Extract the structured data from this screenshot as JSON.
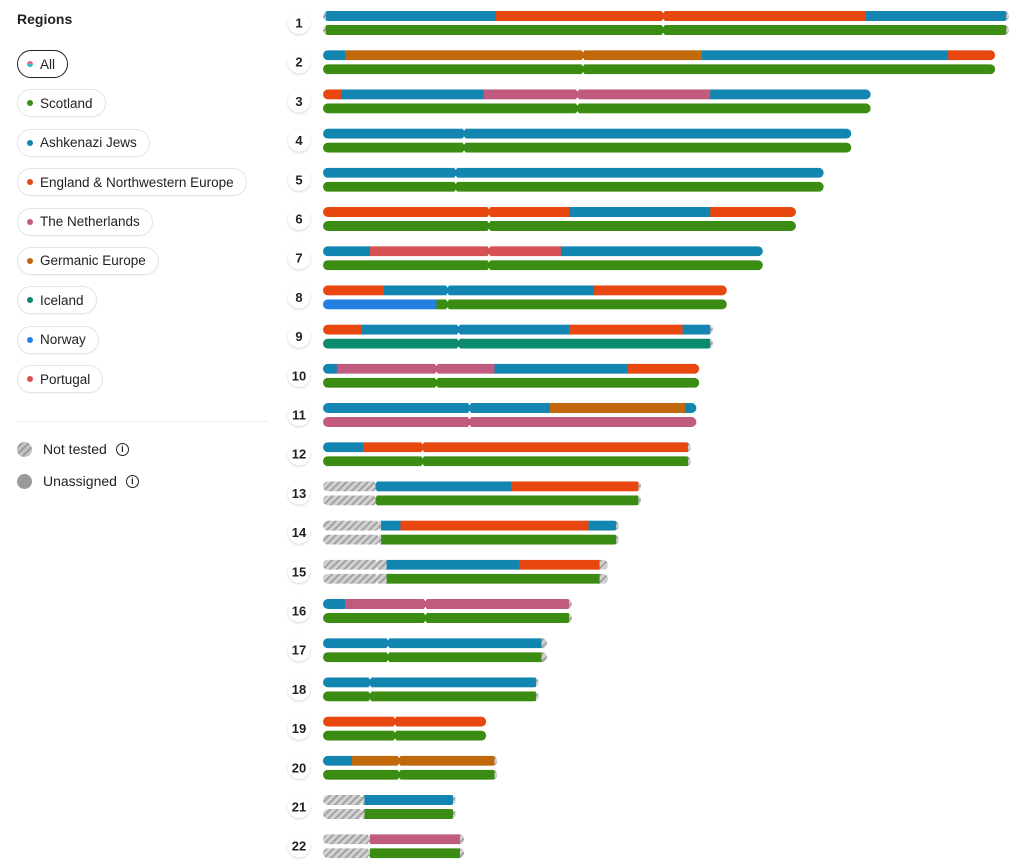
{
  "sidebar": {
    "title": "Regions",
    "filters": [
      {
        "label": "All",
        "color": "#6fb3c9",
        "selected": true
      },
      {
        "label": "Scotland",
        "color": "#3b8c12"
      },
      {
        "label": "Ashkenazi Jews",
        "color": "#1286b0"
      },
      {
        "label": "England & Northwestern Europe",
        "color": "#e8470f"
      },
      {
        "label": "The Netherlands",
        "color": "#c05a7e"
      },
      {
        "label": "Germanic Europe",
        "color": "#c0680a"
      },
      {
        "label": "Iceland",
        "color": "#0c8a6e"
      },
      {
        "label": "Norway",
        "color": "#2480e0"
      },
      {
        "label": "Portugal",
        "color": "#d65252"
      }
    ],
    "not_tested": "Not tested",
    "unassigned": "Unassigned",
    "info_glyph": "i"
  },
  "chart_data": {
    "type": "chromosome-painting",
    "units": "Mb",
    "colors": {
      "SC": "#3b8c12",
      "AJ": "#1286b0",
      "EN": "#e8470f",
      "NL": "#c05a7e",
      "GE": "#c0680a",
      "IS": "#0c8a6e",
      "NO": "#2480e0",
      "PT": "#d65252",
      "NT": "not-tested-hatch"
    },
    "chromosomes": [
      {
        "label": "1",
        "length": 248,
        "centromere": 123,
        "upper": [
          [
            "NT",
            0,
            1
          ],
          [
            "AJ",
            1,
            62.5
          ],
          [
            "EN",
            62.5,
            196
          ],
          [
            "AJ",
            196,
            247
          ],
          [
            "NT",
            247,
            248
          ]
        ],
        "lower": [
          [
            "NT",
            0,
            1
          ],
          [
            "SC",
            1,
            247
          ],
          [
            "NT",
            247,
            248
          ]
        ]
      },
      {
        "label": "2",
        "length": 243,
        "centromere": 94,
        "upper": [
          [
            "AJ",
            0,
            8
          ],
          [
            "GE",
            8,
            137
          ],
          [
            "AJ",
            137,
            226
          ],
          [
            "EN",
            226,
            243
          ]
        ],
        "lower": [
          [
            "SC",
            0,
            243
          ]
        ]
      },
      {
        "label": "3",
        "length": 198,
        "centromere": 92,
        "upper": [
          [
            "EN",
            0,
            6.5
          ],
          [
            "AJ",
            6.5,
            58
          ],
          [
            "NL",
            58,
            140
          ],
          [
            "AJ",
            140,
            198
          ]
        ],
        "lower": [
          [
            "SC",
            0,
            198
          ]
        ]
      },
      {
        "label": "4",
        "length": 191,
        "centromere": 51,
        "upper": [
          [
            "AJ",
            0,
            191
          ]
        ],
        "lower": [
          [
            "SC",
            0,
            191
          ]
        ]
      },
      {
        "label": "5",
        "length": 181,
        "centromere": 48,
        "upper": [
          [
            "AJ",
            0,
            181
          ]
        ],
        "lower": [
          [
            "SC",
            0,
            181
          ]
        ]
      },
      {
        "label": "6",
        "length": 171,
        "centromere": 60,
        "upper": [
          [
            "EN",
            0,
            89
          ],
          [
            "AJ",
            89,
            140
          ],
          [
            "EN",
            140,
            171
          ]
        ],
        "lower": [
          [
            "SC",
            0,
            171
          ]
        ]
      },
      {
        "label": "7",
        "length": 159,
        "centromere": 60,
        "upper": [
          [
            "AJ",
            0,
            17
          ],
          [
            "PT",
            17,
            86
          ],
          [
            "AJ",
            86,
            159
          ]
        ],
        "lower": [
          [
            "SC",
            0,
            159
          ]
        ]
      },
      {
        "label": "8",
        "length": 146,
        "centromere": 45,
        "upper": [
          [
            "EN",
            0,
            22
          ],
          [
            "AJ",
            22,
            98
          ],
          [
            "EN",
            98,
            146
          ]
        ],
        "lower": [
          [
            "NO",
            0,
            41
          ],
          [
            "SC",
            41,
            146
          ]
        ]
      },
      {
        "label": "9",
        "length": 141,
        "centromere": 49,
        "upper": [
          [
            "EN",
            0,
            14
          ],
          [
            "AJ",
            14,
            89
          ],
          [
            "EN",
            89,
            130
          ],
          [
            "AJ",
            130,
            140
          ],
          [
            "NT",
            140,
            141
          ]
        ],
        "lower": [
          [
            "IS",
            0,
            140
          ],
          [
            "NT",
            140,
            141
          ]
        ]
      },
      {
        "label": "10",
        "length": 136,
        "centromere": 41,
        "upper": [
          [
            "AJ",
            0,
            5
          ],
          [
            "NL",
            5,
            62
          ],
          [
            "AJ",
            62,
            110
          ],
          [
            "EN",
            110,
            136
          ]
        ],
        "lower": [
          [
            "SC",
            0,
            136
          ]
        ]
      },
      {
        "label": "11",
        "length": 135,
        "centromere": 53,
        "upper": [
          [
            "AJ",
            0,
            82
          ],
          [
            "GE",
            82,
            131
          ],
          [
            "AJ",
            131,
            135
          ]
        ],
        "lower": [
          [
            "NL",
            0,
            135
          ]
        ]
      },
      {
        "label": "12",
        "length": 133,
        "centromere": 36,
        "upper": [
          [
            "AJ",
            0,
            14.5
          ],
          [
            "EN",
            14.5,
            132
          ],
          [
            "NT",
            132,
            133
          ]
        ],
        "lower": [
          [
            "SC",
            0,
            132
          ],
          [
            "NT",
            132,
            133
          ]
        ]
      },
      {
        "label": "13",
        "length": 115,
        "centromere": 19,
        "upper": [
          [
            "NT",
            0,
            19
          ],
          [
            "AJ",
            19,
            68
          ],
          [
            "EN",
            68,
            114
          ],
          [
            "NT",
            114,
            115
          ]
        ],
        "lower": [
          [
            "NT",
            0,
            19
          ],
          [
            "SC",
            19,
            114
          ],
          [
            "NT",
            114,
            115
          ]
        ]
      },
      {
        "label": "14",
        "length": 107,
        "centromere": 20,
        "upper": [
          [
            "NT",
            0,
            21
          ],
          [
            "AJ",
            21,
            28
          ],
          [
            "EN",
            28,
            96
          ],
          [
            "AJ",
            96,
            106
          ],
          [
            "NT",
            106,
            107
          ]
        ],
        "lower": [
          [
            "NT",
            0,
            21
          ],
          [
            "SC",
            21,
            106
          ],
          [
            "NT",
            106,
            107
          ]
        ]
      },
      {
        "label": "15",
        "length": 103,
        "centromere": 19.5,
        "upper": [
          [
            "NT",
            0,
            23
          ],
          [
            "AJ",
            23,
            71
          ],
          [
            "EN",
            71,
            100
          ],
          [
            "NT",
            100,
            103
          ]
        ],
        "lower": [
          [
            "NT",
            0,
            23
          ],
          [
            "SC",
            23,
            100
          ],
          [
            "NT",
            100,
            103
          ]
        ]
      },
      {
        "label": "16",
        "length": 90,
        "centromere": 37,
        "upper": [
          [
            "AJ",
            0,
            8
          ],
          [
            "NL",
            8,
            89
          ],
          [
            "NT",
            89,
            90
          ]
        ],
        "lower": [
          [
            "SC",
            0,
            89
          ],
          [
            "NT",
            89,
            90
          ]
        ]
      },
      {
        "label": "17",
        "length": 81,
        "centromere": 23.5,
        "upper": [
          [
            "AJ",
            0,
            79
          ],
          [
            "NT",
            79,
            81
          ]
        ],
        "lower": [
          [
            "SC",
            0,
            79
          ],
          [
            "NT",
            79,
            81
          ]
        ]
      },
      {
        "label": "18",
        "length": 78,
        "centromere": 17,
        "upper": [
          [
            "AJ",
            0,
            77
          ],
          [
            "NT",
            77,
            78
          ]
        ],
        "lower": [
          [
            "SC",
            0,
            77
          ],
          [
            "NT",
            77,
            78
          ]
        ]
      },
      {
        "label": "19",
        "length": 59,
        "centromere": 26,
        "upper": [
          [
            "EN",
            0,
            59
          ]
        ],
        "lower": [
          [
            "SC",
            0,
            59
          ]
        ]
      },
      {
        "label": "20",
        "length": 63,
        "centromere": 27.5,
        "upper": [
          [
            "AJ",
            0,
            10.5
          ],
          [
            "GE",
            10.5,
            62
          ],
          [
            "NT",
            62,
            63
          ]
        ],
        "lower": [
          [
            "SC",
            0,
            62
          ],
          [
            "NT",
            62,
            63
          ]
        ]
      },
      {
        "label": "21",
        "length": 48,
        "centromere": 14,
        "upper": [
          [
            "NT",
            0,
            15
          ],
          [
            "AJ",
            15,
            47
          ],
          [
            "NT",
            47,
            48
          ]
        ],
        "lower": [
          [
            "NT",
            0,
            15
          ],
          [
            "SC",
            15,
            47
          ],
          [
            "NT",
            47,
            48
          ]
        ]
      },
      {
        "label": "22",
        "length": 51,
        "centromere": 16.6,
        "upper": [
          [
            "NT",
            0,
            17
          ],
          [
            "NL",
            17,
            49.5
          ],
          [
            "NT",
            49.5,
            51
          ]
        ],
        "lower": [
          [
            "NT",
            0,
            17
          ],
          [
            "SC",
            17,
            49.5
          ],
          [
            "NT",
            49.5,
            51
          ]
        ]
      }
    ]
  }
}
